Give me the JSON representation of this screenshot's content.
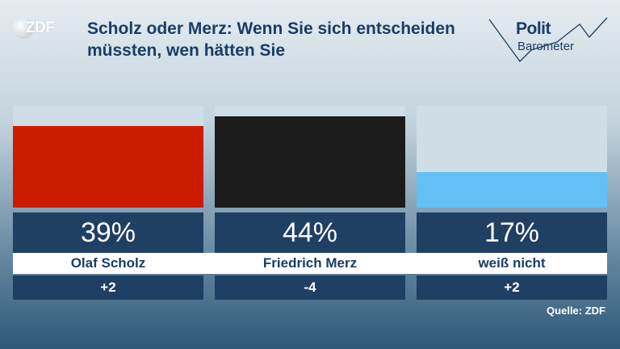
{
  "logo": {
    "text": "ZDF"
  },
  "title": "Scholz oder Merz: Wenn Sie sich entscheiden müssten, wen hätten Sie",
  "brand": {
    "line1": "Polit",
    "line2": "Barometer"
  },
  "source": "Quelle: ZDF",
  "colors": {
    "track": "#cfdde6",
    "brand_blue": "#1b3d66"
  },
  "chart_data": {
    "type": "bar",
    "title": "Scholz oder Merz: Wenn Sie sich entscheiden müssten, wen hätten Sie",
    "categories": [
      "Olaf Scholz",
      "Friedrich Merz",
      "weiß nicht"
    ],
    "values": [
      39,
      44,
      17
    ],
    "value_labels": [
      "39%",
      "44%",
      "17%"
    ],
    "changes": [
      "+2",
      "-4",
      "+2"
    ],
    "colors": [
      "#cc1c00",
      "#1c1c1c",
      "#62c0f4"
    ],
    "unit": "%",
    "ylim": [
      0,
      44
    ]
  }
}
